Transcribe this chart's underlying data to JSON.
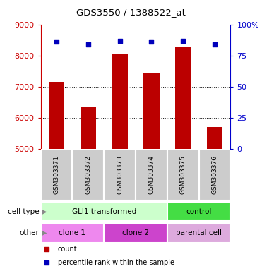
{
  "title": "GDS3550 / 1388522_at",
  "samples": [
    "GSM303371",
    "GSM303372",
    "GSM303373",
    "GSM303374",
    "GSM303375",
    "GSM303376"
  ],
  "counts": [
    7150,
    6330,
    8050,
    7450,
    8280,
    5700
  ],
  "percentile_ranks": [
    86,
    84,
    87,
    86,
    87,
    84
  ],
  "ylim_left": [
    5000,
    9000
  ],
  "ylim_right": [
    0,
    100
  ],
  "yticks_left": [
    5000,
    6000,
    7000,
    8000,
    9000
  ],
  "yticks_right": [
    0,
    25,
    50,
    75,
    100
  ],
  "bar_color": "#bb0000",
  "dot_color": "#0000bb",
  "left_axis_color": "#cc0000",
  "right_axis_color": "#0000cc",
  "cell_type_groups": [
    {
      "label": "GLI1 transformed",
      "color": "#ccffcc",
      "span": [
        0,
        4
      ]
    },
    {
      "label": "control",
      "color": "#44dd44",
      "span": [
        4,
        6
      ]
    }
  ],
  "other_groups": [
    {
      "label": "clone 1",
      "color": "#ee88ee",
      "span": [
        0,
        2
      ]
    },
    {
      "label": "clone 2",
      "color": "#cc44cc",
      "span": [
        2,
        4
      ]
    },
    {
      "label": "parental cell",
      "color": "#ddaadd",
      "span": [
        4,
        6
      ]
    }
  ],
  "legend_items": [
    {
      "label": "count",
      "color": "#bb0000",
      "marker": "s"
    },
    {
      "label": "percentile rank within the sample",
      "color": "#0000bb",
      "marker": "s"
    }
  ],
  "background_color": "#ffffff",
  "bar_width": 0.5
}
